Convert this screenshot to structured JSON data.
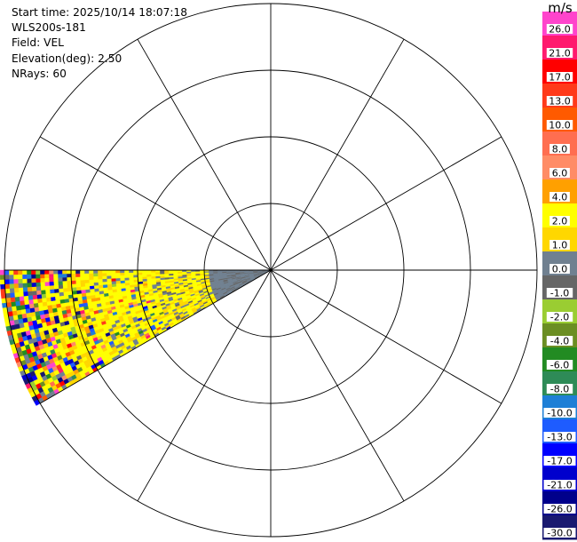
{
  "header": {
    "start_time": "Start time: 2025/10/14 18:07:18",
    "instrument": "WLS200s-181",
    "field": "Field: VEL",
    "elevation": "Elevation(deg): 2.50",
    "nrays": "NRays: 60"
  },
  "colorbar": {
    "unit": "m/s",
    "segments": [
      {
        "label": "26.0",
        "color": "#ff44cc"
      },
      {
        "label": "21.0",
        "color": "#ff1a6e"
      },
      {
        "label": "17.0",
        "color": "#ff0000"
      },
      {
        "label": "13.0",
        "color": "#ff3a1a"
      },
      {
        "label": "10.0",
        "color": "#ff5a00"
      },
      {
        "label": "8.0",
        "color": "#ff6e50"
      },
      {
        "label": "6.0",
        "color": "#ff8c66"
      },
      {
        "label": "4.0",
        "color": "#ffa000"
      },
      {
        "label": "2.0",
        "color": "#ffff00"
      },
      {
        "label": "1.0",
        "color": "#ffd700"
      },
      {
        "label": "0.0",
        "color": "#708090"
      },
      {
        "label": "-1.0",
        "color": "#666666"
      },
      {
        "label": "-2.0",
        "color": "#9acd32"
      },
      {
        "label": "-4.0",
        "color": "#6b8e23"
      },
      {
        "label": "-6.0",
        "color": "#228b22"
      },
      {
        "label": "-8.0",
        "color": "#2e8b57"
      },
      {
        "label": "-10.0",
        "color": "#1e7fd6"
      },
      {
        "label": "-13.0",
        "color": "#1e5cff"
      },
      {
        "label": "-17.0",
        "color": "#0000ff"
      },
      {
        "label": "-21.0",
        "color": "#0000cd"
      },
      {
        "label": "-26.0",
        "color": "#00008b"
      },
      {
        "label": "-30.0",
        "color": "#191970"
      }
    ]
  },
  "chart_data": {
    "type": "heatmap",
    "projection": "polar (PPI scan)",
    "field": "VEL",
    "units": "m/s",
    "range_rings": 4,
    "spokes_deg": [
      0,
      30,
      60,
      90,
      120,
      150,
      180,
      210,
      240,
      270,
      300,
      330
    ],
    "sector_azimuth_deg": [
      240,
      270
    ],
    "data_fill_description": "Near range mostly 0.0 to -1.0 (gray), mid range 1.0 to 4.0 (yellow), far range mixed noise across full scale",
    "color_scale_range": [
      -30.0,
      26.0
    ],
    "grid": true
  }
}
